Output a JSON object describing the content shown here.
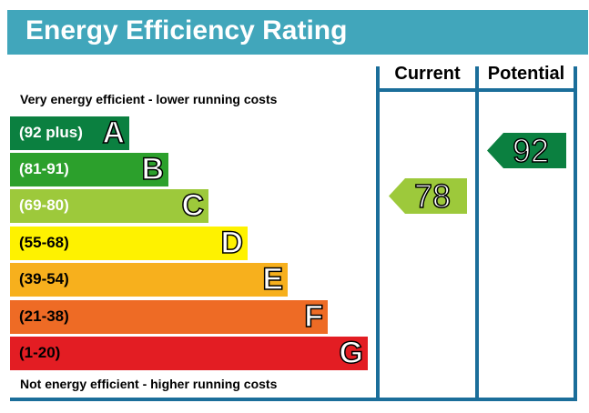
{
  "title": "Energy Efficiency Rating",
  "columns": {
    "current": "Current",
    "potential": "Potential"
  },
  "top_caption": "Very energy efficient - lower running costs",
  "bottom_caption": "Not energy efficient - higher running costs",
  "bands": [
    {
      "range": "(92 plus)",
      "letter": "A",
      "color": "#0b8040"
    },
    {
      "range": "(81-91)",
      "letter": "B",
      "color": "#2ca02c"
    },
    {
      "range": "(69-80)",
      "letter": "C",
      "color": "#9dc93b"
    },
    {
      "range": "(55-68)",
      "letter": "D",
      "color": "#fef200"
    },
    {
      "range": "(39-54)",
      "letter": "E",
      "color": "#f7b01d"
    },
    {
      "range": "(21-38)",
      "letter": "F",
      "color": "#ee6b25"
    },
    {
      "range": "(1-20)",
      "letter": "G",
      "color": "#e31d23"
    }
  ],
  "current": {
    "value": "78",
    "color": "#9dc93b"
  },
  "potential": {
    "value": "92",
    "color": "#0b8040"
  }
}
